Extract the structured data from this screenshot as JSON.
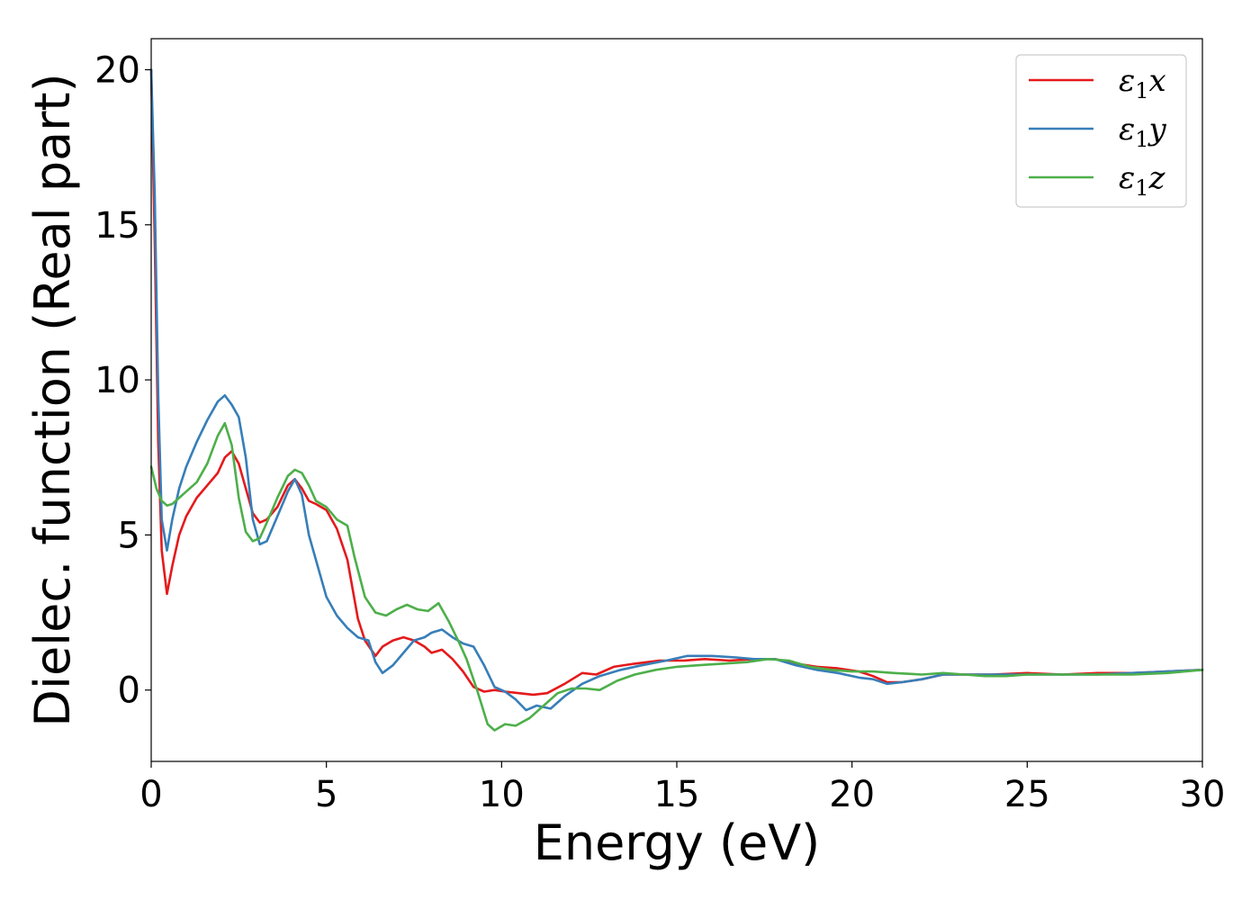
{
  "chart_data": {
    "type": "line",
    "xlabel": "Energy (eV)",
    "ylabel": "Dielec. function (Real part)",
    "xlim": [
      0,
      30
    ],
    "ylim": [
      -2.3,
      21
    ],
    "xticks": [
      0,
      5,
      10,
      15,
      20,
      25,
      30
    ],
    "yticks": [
      0,
      5,
      10,
      15,
      20
    ],
    "grid": false,
    "legend_position": "top-right",
    "series": [
      {
        "name": "ε₁x",
        "legend": {
          "base": "ε",
          "sub": "1",
          "var": "x"
        },
        "color": "#e41a1c",
        "x": [
          0,
          0.1,
          0.2,
          0.3,
          0.45,
          0.6,
          0.8,
          1.0,
          1.3,
          1.6,
          1.9,
          2.1,
          2.3,
          2.5,
          2.7,
          2.9,
          3.1,
          3.3,
          3.6,
          3.9,
          4.1,
          4.3,
          4.5,
          4.7,
          5.0,
          5.3,
          5.6,
          5.9,
          6.1,
          6.4,
          6.6,
          6.9,
          7.2,
          7.5,
          7.8,
          8.0,
          8.3,
          8.6,
          8.9,
          9.2,
          9.5,
          9.8,
          10.1,
          10.5,
          10.9,
          11.3,
          11.8,
          12.3,
          12.7,
          13.2,
          13.8,
          14.5,
          15.2,
          15.8,
          16.5,
          17.2,
          17.8,
          18.4,
          19.0,
          19.6,
          20.2,
          20.6,
          21.0,
          21.4,
          22.0,
          22.6,
          23.2,
          24.0,
          25.0,
          26.0,
          27.0,
          28.0,
          29.0,
          30.0
        ],
        "values": [
          20.0,
          14.5,
          8.0,
          4.5,
          3.1,
          4.0,
          5.0,
          5.6,
          6.2,
          6.6,
          7.0,
          7.5,
          7.7,
          7.3,
          6.5,
          5.7,
          5.4,
          5.5,
          5.9,
          6.6,
          6.8,
          6.5,
          6.1,
          6.0,
          5.8,
          5.2,
          4.2,
          2.3,
          1.6,
          1.1,
          1.4,
          1.6,
          1.7,
          1.6,
          1.4,
          1.2,
          1.3,
          1.0,
          0.6,
          0.1,
          -0.05,
          0.0,
          -0.05,
          -0.1,
          -0.15,
          -0.1,
          0.2,
          0.55,
          0.5,
          0.75,
          0.85,
          0.95,
          0.95,
          1.0,
          0.95,
          1.0,
          1.0,
          0.85,
          0.75,
          0.7,
          0.6,
          0.45,
          0.25,
          0.25,
          0.35,
          0.5,
          0.5,
          0.5,
          0.55,
          0.5,
          0.55,
          0.55,
          0.6,
          0.65
        ]
      },
      {
        "name": "ε₁y",
        "legend": {
          "base": "ε",
          "sub": "1",
          "var": "y"
        },
        "color": "#377eb8",
        "x": [
          0,
          0.1,
          0.2,
          0.3,
          0.45,
          0.6,
          0.8,
          1.0,
          1.3,
          1.6,
          1.9,
          2.1,
          2.3,
          2.5,
          2.7,
          2.9,
          3.1,
          3.3,
          3.6,
          3.9,
          4.1,
          4.3,
          4.5,
          4.7,
          5.0,
          5.3,
          5.6,
          5.9,
          6.2,
          6.4,
          6.6,
          6.9,
          7.2,
          7.5,
          7.8,
          8.0,
          8.3,
          8.6,
          8.9,
          9.2,
          9.5,
          9.8,
          10.1,
          10.4,
          10.7,
          11.0,
          11.4,
          11.8,
          12.3,
          12.8,
          13.4,
          14.0,
          14.7,
          15.3,
          16.0,
          16.7,
          17.2,
          17.8,
          18.4,
          19.0,
          19.6,
          20.2,
          20.6,
          21.0,
          21.4,
          22.0,
          22.6,
          23.2,
          24.0,
          25.0,
          26.0,
          27.0,
          28.0,
          29.0,
          30.0
        ],
        "values": [
          20.0,
          16.0,
          9.5,
          5.5,
          4.5,
          5.5,
          6.5,
          7.2,
          8.0,
          8.7,
          9.3,
          9.5,
          9.2,
          8.8,
          7.5,
          5.5,
          4.7,
          4.8,
          5.6,
          6.4,
          6.8,
          6.3,
          5.0,
          4.2,
          3.0,
          2.4,
          2.0,
          1.7,
          1.6,
          0.9,
          0.55,
          0.8,
          1.2,
          1.6,
          1.7,
          1.85,
          1.95,
          1.7,
          1.5,
          1.4,
          0.8,
          0.1,
          -0.05,
          -0.3,
          -0.65,
          -0.5,
          -0.6,
          -0.2,
          0.2,
          0.45,
          0.65,
          0.8,
          0.95,
          1.1,
          1.1,
          1.05,
          1.0,
          1.0,
          0.8,
          0.65,
          0.55,
          0.4,
          0.35,
          0.2,
          0.25,
          0.35,
          0.5,
          0.5,
          0.5,
          0.5,
          0.5,
          0.5,
          0.55,
          0.6,
          0.65
        ]
      },
      {
        "name": "ε₁z",
        "legend": {
          "base": "ε",
          "sub": "1",
          "var": "z"
        },
        "color": "#4daf4a",
        "x": [
          0,
          0.15,
          0.3,
          0.45,
          0.6,
          0.8,
          1.0,
          1.3,
          1.6,
          1.9,
          2.1,
          2.3,
          2.5,
          2.7,
          2.9,
          3.1,
          3.3,
          3.6,
          3.9,
          4.1,
          4.3,
          4.5,
          4.7,
          5.0,
          5.3,
          5.6,
          5.8,
          6.1,
          6.4,
          6.7,
          7.0,
          7.3,
          7.6,
          7.9,
          8.2,
          8.5,
          8.8,
          9.0,
          9.3,
          9.6,
          9.8,
          10.1,
          10.4,
          10.8,
          11.2,
          11.6,
          12.0,
          12.4,
          12.8,
          13.3,
          13.8,
          14.4,
          15.0,
          15.6,
          16.3,
          17.0,
          17.6,
          18.2,
          18.8,
          19.4,
          20.0,
          20.6,
          21.2,
          22.0,
          22.6,
          23.2,
          23.8,
          24.4,
          25.0,
          26.0,
          27.0,
          28.0,
          29.0,
          30.0
        ],
        "values": [
          7.2,
          6.5,
          6.1,
          5.95,
          6.0,
          6.2,
          6.4,
          6.7,
          7.3,
          8.2,
          8.6,
          7.9,
          6.2,
          5.1,
          4.8,
          4.9,
          5.4,
          6.2,
          6.9,
          7.1,
          7.0,
          6.6,
          6.1,
          5.9,
          5.5,
          5.3,
          4.3,
          3.0,
          2.5,
          2.4,
          2.6,
          2.75,
          2.6,
          2.55,
          2.8,
          2.2,
          1.5,
          1.0,
          0.0,
          -1.1,
          -1.3,
          -1.1,
          -1.15,
          -0.9,
          -0.5,
          -0.1,
          0.05,
          0.05,
          0.0,
          0.3,
          0.5,
          0.65,
          0.75,
          0.8,
          0.85,
          0.9,
          1.0,
          0.95,
          0.75,
          0.65,
          0.6,
          0.6,
          0.55,
          0.5,
          0.55,
          0.5,
          0.45,
          0.45,
          0.5,
          0.5,
          0.5,
          0.5,
          0.55,
          0.65
        ]
      }
    ]
  }
}
